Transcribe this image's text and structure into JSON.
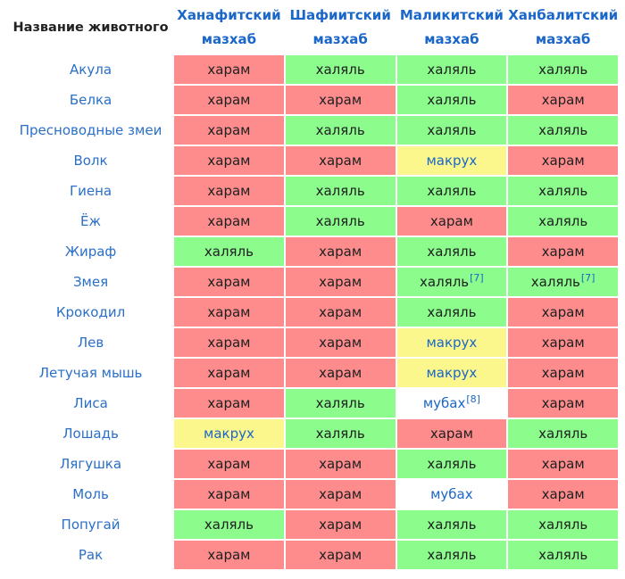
{
  "table": {
    "header": {
      "animal": "Название животного",
      "mazhabs": [
        {
          "line1": "Ханафитский",
          "line2": "мазхаб"
        },
        {
          "line1": "Шафиитский",
          "line2": "мазхаб"
        },
        {
          "line1": "Маликитский",
          "line2": "мазхаб"
        },
        {
          "line1": "Ханбалитский",
          "line2": "мазхаб"
        }
      ]
    },
    "colors": {
      "haram": "#ff8c8c",
      "halal": "#8cfc8c",
      "makruh": "#fcf78c",
      "mubah": "#ffffff",
      "link": "#1a66c9"
    },
    "rows": [
      {
        "animal": "Акула",
        "cells": [
          {
            "text": "харам",
            "type": "haram"
          },
          {
            "text": "халяль",
            "type": "halal"
          },
          {
            "text": "халяль",
            "type": "halal"
          },
          {
            "text": "халяль",
            "type": "halal"
          }
        ]
      },
      {
        "animal": "Белка",
        "cells": [
          {
            "text": "харам",
            "type": "haram"
          },
          {
            "text": "харам",
            "type": "haram"
          },
          {
            "text": "халяль",
            "type": "halal"
          },
          {
            "text": "харам",
            "type": "haram"
          }
        ]
      },
      {
        "animal": "Пресноводные змеи",
        "cells": [
          {
            "text": "харам",
            "type": "haram"
          },
          {
            "text": "халяль",
            "type": "halal"
          },
          {
            "text": "халяль",
            "type": "halal"
          },
          {
            "text": "халяль",
            "type": "halal"
          }
        ]
      },
      {
        "animal": "Волк",
        "cells": [
          {
            "text": "харам",
            "type": "haram"
          },
          {
            "text": "харам",
            "type": "haram"
          },
          {
            "text": "макрух",
            "type": "makruh"
          },
          {
            "text": "харам",
            "type": "haram"
          }
        ]
      },
      {
        "animal": "Гиена",
        "cells": [
          {
            "text": "харам",
            "type": "haram"
          },
          {
            "text": "халяль",
            "type": "halal"
          },
          {
            "text": "халяль",
            "type": "halal"
          },
          {
            "text": "халяль",
            "type": "halal"
          }
        ]
      },
      {
        "animal": "Ёж",
        "cells": [
          {
            "text": "харам",
            "type": "haram"
          },
          {
            "text": "халяль",
            "type": "halal"
          },
          {
            "text": "харам",
            "type": "haram"
          },
          {
            "text": "халяль",
            "type": "halal"
          }
        ]
      },
      {
        "animal": "Жираф",
        "cells": [
          {
            "text": "халяль",
            "type": "halal"
          },
          {
            "text": "харам",
            "type": "haram"
          },
          {
            "text": "халяль",
            "type": "halal"
          },
          {
            "text": "харам",
            "type": "haram"
          }
        ]
      },
      {
        "animal": "Змея",
        "cells": [
          {
            "text": "харам",
            "type": "haram"
          },
          {
            "text": "харам",
            "type": "haram"
          },
          {
            "text": "халяль",
            "type": "halal",
            "ref": "[7]"
          },
          {
            "text": "халяль",
            "type": "halal",
            "ref": "[7]"
          }
        ]
      },
      {
        "animal": "Крокодил",
        "cells": [
          {
            "text": "харам",
            "type": "haram"
          },
          {
            "text": "харам",
            "type": "haram"
          },
          {
            "text": "халяль",
            "type": "halal"
          },
          {
            "text": "харам",
            "type": "haram"
          }
        ]
      },
      {
        "animal": "Лев",
        "cells": [
          {
            "text": "харам",
            "type": "haram"
          },
          {
            "text": "харам",
            "type": "haram"
          },
          {
            "text": "макрух",
            "type": "makruh"
          },
          {
            "text": "харам",
            "type": "haram"
          }
        ]
      },
      {
        "animal": "Летучая мышь",
        "cells": [
          {
            "text": "харам",
            "type": "haram"
          },
          {
            "text": "харам",
            "type": "haram"
          },
          {
            "text": "макрух",
            "type": "makruh"
          },
          {
            "text": "харам",
            "type": "haram"
          }
        ]
      },
      {
        "animal": "Лиса",
        "cells": [
          {
            "text": "харам",
            "type": "haram"
          },
          {
            "text": "халяль",
            "type": "halal"
          },
          {
            "text": "мубах",
            "type": "mubah",
            "ref": "[8]"
          },
          {
            "text": "харам",
            "type": "haram"
          }
        ]
      },
      {
        "animal": "Лошадь",
        "cells": [
          {
            "text": "макрух",
            "type": "makruh"
          },
          {
            "text": "халяль",
            "type": "halal"
          },
          {
            "text": "харам",
            "type": "haram"
          },
          {
            "text": "халяль",
            "type": "halal"
          }
        ]
      },
      {
        "animal": "Лягушка",
        "cells": [
          {
            "text": "харам",
            "type": "haram"
          },
          {
            "text": "харам",
            "type": "haram"
          },
          {
            "text": "халяль",
            "type": "halal"
          },
          {
            "text": "харам",
            "type": "haram"
          }
        ]
      },
      {
        "animal": "Моль",
        "cells": [
          {
            "text": "харам",
            "type": "haram"
          },
          {
            "text": "харам",
            "type": "haram"
          },
          {
            "text": "мубах",
            "type": "mubah"
          },
          {
            "text": "харам",
            "type": "haram"
          }
        ]
      },
      {
        "animal": "Попугай",
        "cells": [
          {
            "text": "халяль",
            "type": "halal"
          },
          {
            "text": "харам",
            "type": "haram"
          },
          {
            "text": "халяль",
            "type": "halal"
          },
          {
            "text": "халяль",
            "type": "halal"
          }
        ]
      },
      {
        "animal": "Рак",
        "cells": [
          {
            "text": "харам",
            "type": "haram"
          },
          {
            "text": "харам",
            "type": "haram"
          },
          {
            "text": "халяль",
            "type": "halal"
          },
          {
            "text": "халяль",
            "type": "halal"
          }
        ]
      }
    ]
  }
}
